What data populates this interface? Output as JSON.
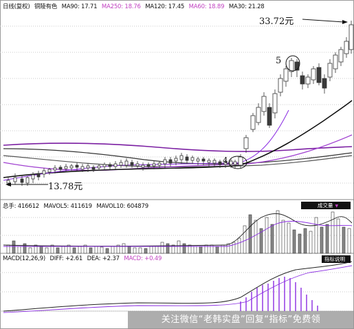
{
  "price_panel": {
    "header": {
      "period": "日线(复权)",
      "stock_name": "铜陵有色",
      "ma90": "MA90: 17.71",
      "ma250": "MA250: 18.76",
      "ma120": "MA120: 17.45",
      "ma60": "MA60: 18.89",
      "ma30": "MA30: 21.28"
    },
    "high_label": "33.72元",
    "low_label": "13.78元",
    "marker_4": "4",
    "marker_5": "5"
  },
  "volume_panel": {
    "header": {
      "total": "总手: 416612",
      "mavol5": "MAVOL5: 411619",
      "mavol10": "MAVOL10: 604879"
    },
    "indicator_button": "成交量"
  },
  "macd_panel": {
    "header": {
      "params": "MACD(12,26,9)",
      "diff": "DIFF: +2.61",
      "dea": "DEA: +2.37",
      "macd": "MACD: +0.49"
    },
    "indicator_button": "指标说明"
  },
  "watermark": "关注微信“老韩实盘”回复“指标”免费领",
  "colors": {
    "up_candle": "#ffffff",
    "down_candle": "#3a3a3a",
    "ma_purple": "#8a2be2",
    "ma250_line": "#7b1fa2",
    "ma_black": "#222222",
    "header_ma250": "#c040c0",
    "header_ma60": "#c040c0",
    "macd_bar_up": "#8a2be2",
    "macd_bar_down": "#1a1a1a"
  }
}
